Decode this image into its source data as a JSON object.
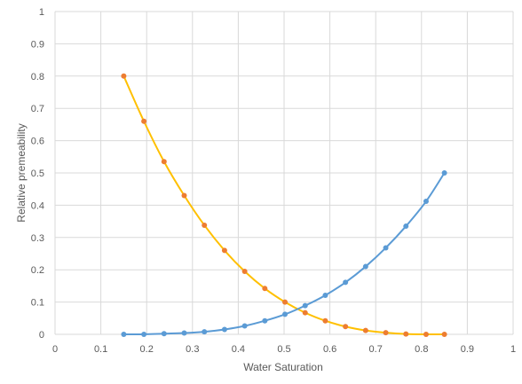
{
  "chart_data": {
    "type": "scatter",
    "title": "",
    "xlabel": "Water Saturation",
    "ylabel": "Relative premeability",
    "xlim": [
      0,
      1
    ],
    "ylim": [
      0,
      1
    ],
    "x_ticks": [
      "0",
      "0.1",
      "0.2",
      "0.3",
      "0.4",
      "0.5",
      "0.6",
      "0.7",
      "0.8",
      "0.9",
      "1"
    ],
    "y_ticks": [
      "0",
      "0.1",
      "0.2",
      "0.3",
      "0.4",
      "0.5",
      "0.6",
      "0.7",
      "0.8",
      "0.9",
      "1"
    ],
    "grid": true,
    "legend": "none",
    "series": [
      {
        "line_color": "#ffc000",
        "marker_color": "#ed7d31",
        "x": [
          0.15,
          0.194,
          0.238,
          0.282,
          0.326,
          0.37,
          0.414,
          0.458,
          0.502,
          0.546,
          0.59,
          0.634,
          0.678,
          0.722,
          0.766,
          0.81,
          0.85
        ],
        "y": [
          0.8,
          0.66,
          0.535,
          0.43,
          0.338,
          0.26,
          0.195,
          0.142,
          0.1,
          0.067,
          0.042,
          0.024,
          0.012,
          0.005,
          0.001,
          0.0,
          0.0
        ]
      },
      {
        "line_color": "#5b9bd5",
        "marker_color": "#5b9bd5",
        "x": [
          0.15,
          0.194,
          0.238,
          0.282,
          0.326,
          0.37,
          0.414,
          0.458,
          0.502,
          0.546,
          0.59,
          0.634,
          0.678,
          0.722,
          0.766,
          0.81,
          0.85
        ],
        "y": [
          0.0,
          0.0,
          0.002,
          0.004,
          0.008,
          0.015,
          0.026,
          0.042,
          0.062,
          0.089,
          0.121,
          0.161,
          0.21,
          0.268,
          0.335,
          0.412,
          0.5
        ]
      }
    ]
  }
}
